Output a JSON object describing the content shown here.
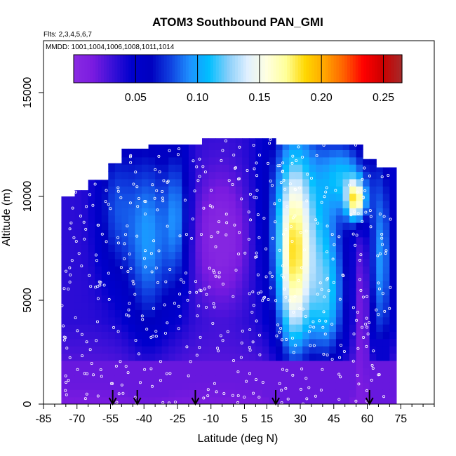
{
  "chart_data": {
    "type": "heatmap",
    "title": "ATOM3 Southbound PAN_GMI",
    "flights_note": "Flts: 2,3,4,5,6,7",
    "dates_note": "MMDD: 1001,1004,1006,1008,1011,1014",
    "xlabel": "Latitude (deg N)",
    "ylabel": "Altitude (m)",
    "xlim": [
      -85,
      90
    ],
    "ylim": [
      0,
      17500
    ],
    "x_ticks": [
      -85,
      -70,
      -55,
      -40,
      -25,
      -10,
      5,
      15,
      30,
      45,
      60,
      75
    ],
    "x_tick_labels": [
      "-85",
      "-70",
      "-55",
      "-40",
      "-25",
      "-10",
      "5",
      "15",
      "30",
      "45",
      "60",
      "75"
    ],
    "y_ticks": [
      0,
      5000,
      10000,
      15000
    ],
    "y_tick_labels": [
      "0",
      "5000",
      "10000",
      "15000"
    ],
    "colorbar": {
      "range": [
        0,
        0.265
      ],
      "ticks": [
        0.05,
        0.1,
        0.15,
        0.2,
        0.25
      ],
      "tick_labels": [
        "0.05",
        "0.10",
        "0.15",
        "0.20",
        "0.25"
      ],
      "colors": [
        "#8a2be2",
        "#7a1be0",
        "#3a10d8",
        "#0000cd",
        "#0000c0",
        "#1040e0",
        "#1e90ff",
        "#00bfff",
        "#87cefa",
        "#e0f0ff",
        "#ffffe0",
        "#ffff99",
        "#ffd700",
        "#ffa500",
        "#ff6000",
        "#ff0000",
        "#cc0000",
        "#a52a2a"
      ]
    },
    "arrow_latitudes": [
      -54,
      -43,
      -17,
      19,
      61
    ],
    "grid": false,
    "legend": "colorbar-top"
  }
}
